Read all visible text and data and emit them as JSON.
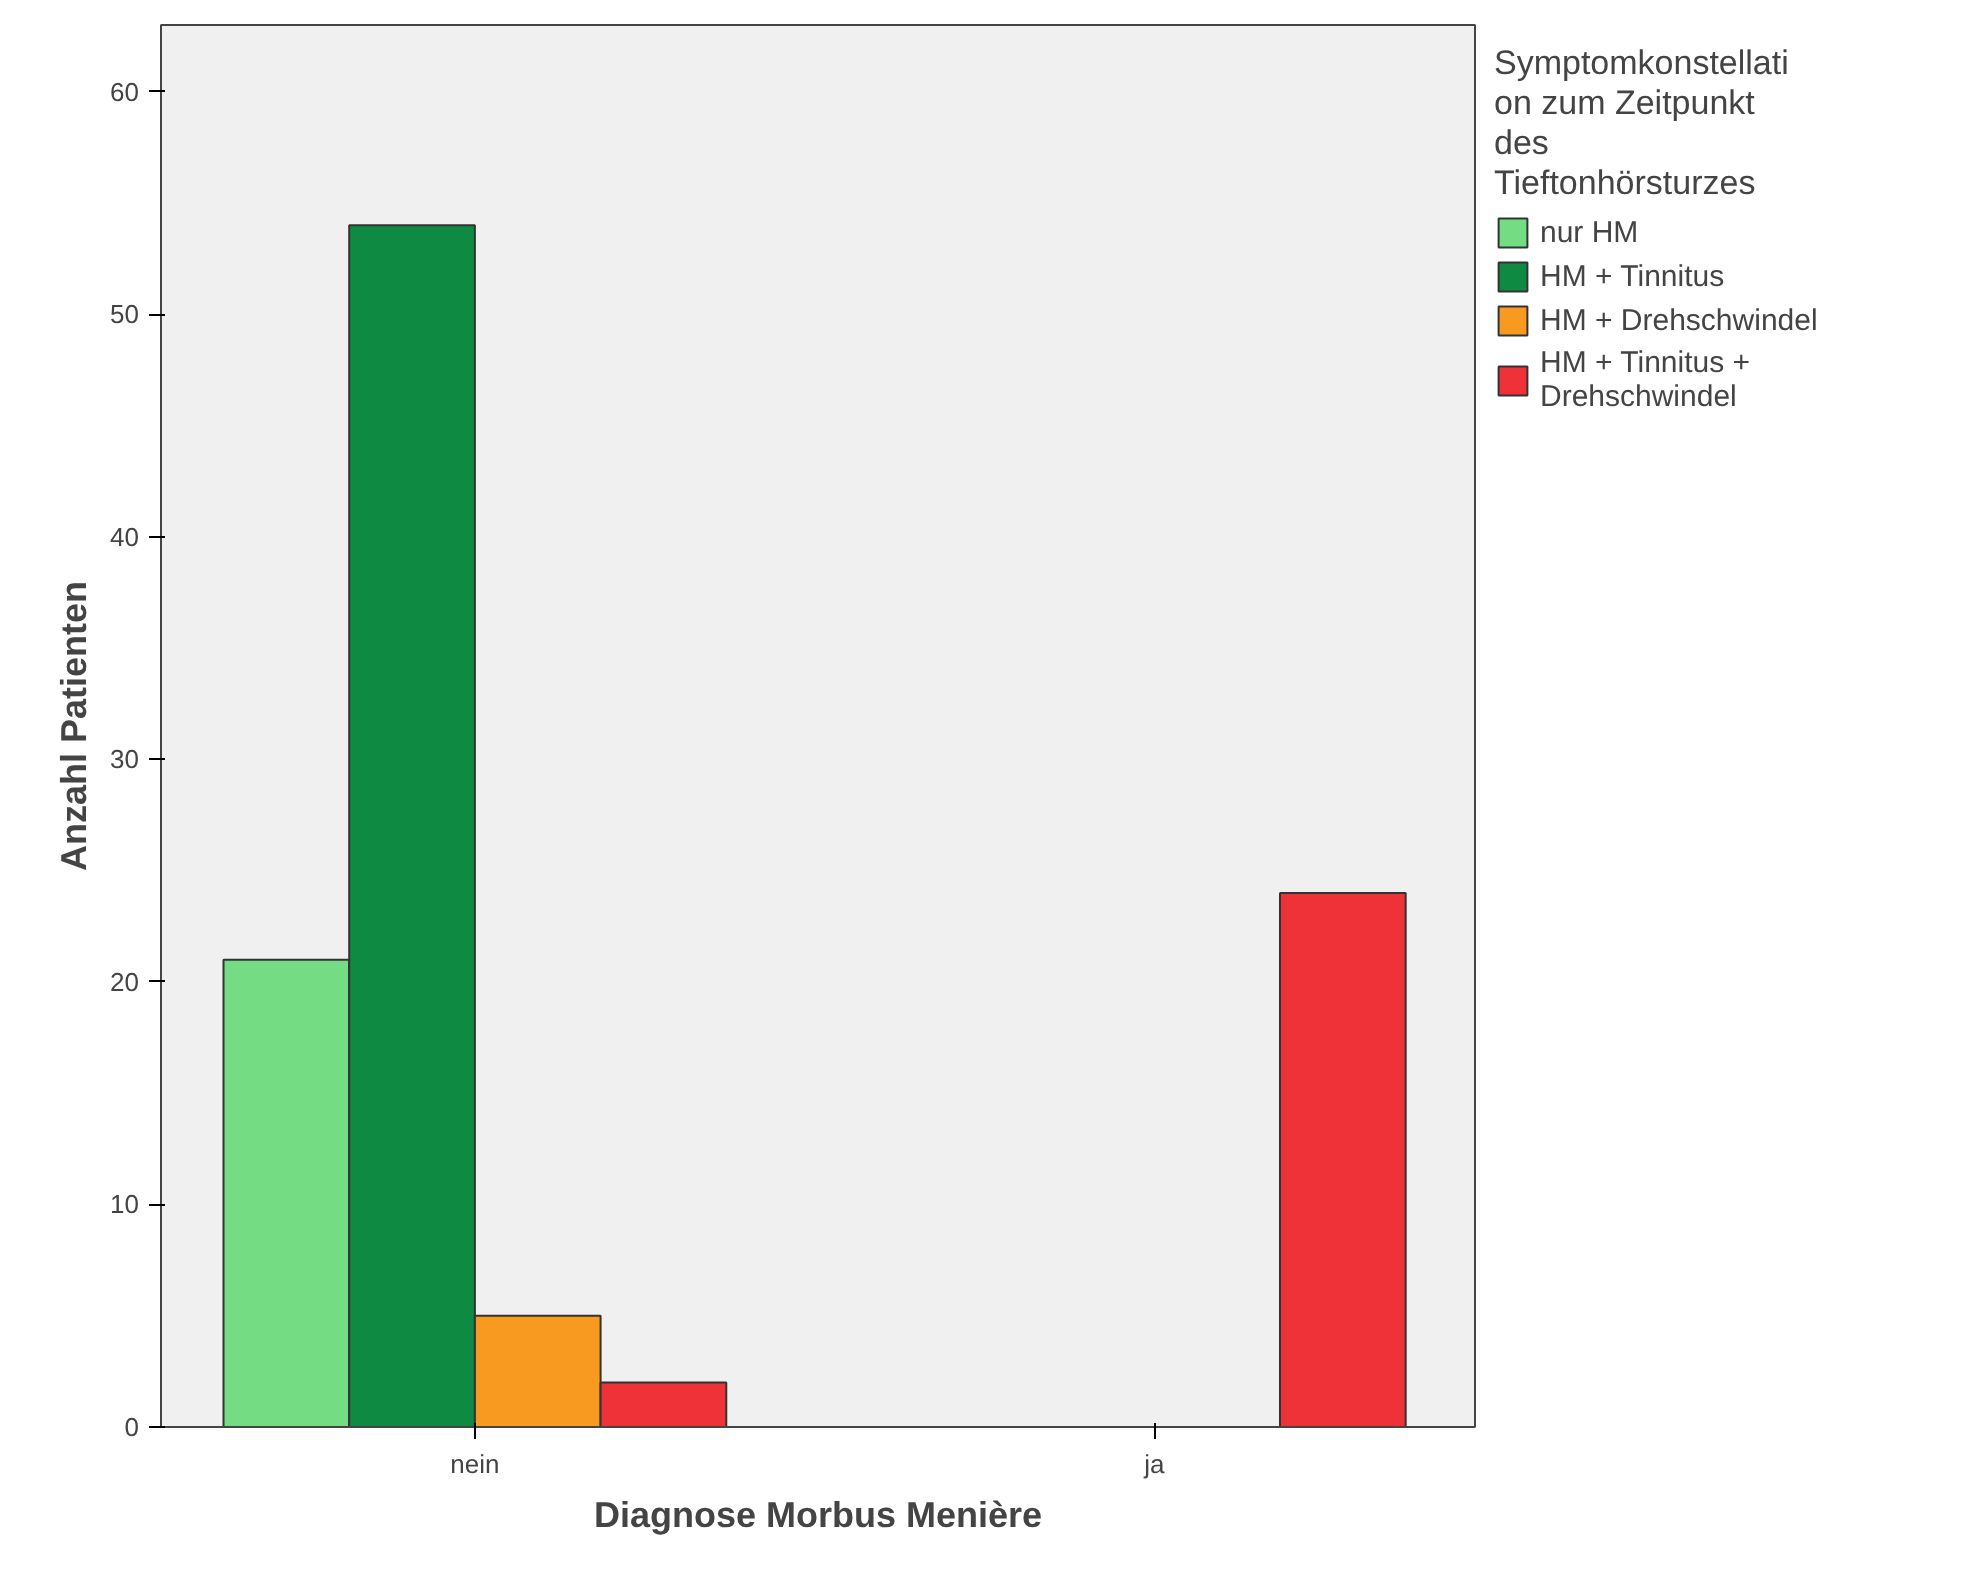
{
  "chart_data": {
    "type": "bar",
    "xlabel": "Diagnose Morbus Menière",
    "ylabel": "Anzahl Patienten",
    "legend_title": "Symptomkonstellation zum Zeitpunkt des Tieftonhörsturzes",
    "categories": [
      "nein",
      "ja"
    ],
    "series": [
      {
        "name": "nur HM",
        "color": "#74dd84",
        "values": [
          21,
          null
        ]
      },
      {
        "name": "HM + Tinnitus",
        "color": "#0f8a43",
        "values": [
          54,
          null
        ]
      },
      {
        "name": "HM + Drehschwindel",
        "color": "#f79a1f",
        "values": [
          5,
          null
        ]
      },
      {
        "name": "HM + Tinnitus + Drehschwindel",
        "color": "#ee3237",
        "values": [
          2,
          24
        ]
      }
    ],
    "ylim": [
      0,
      63
    ],
    "yticks": [
      0,
      10,
      20,
      30,
      40,
      50,
      60
    ],
    "grid": false,
    "legend": "top right"
  }
}
